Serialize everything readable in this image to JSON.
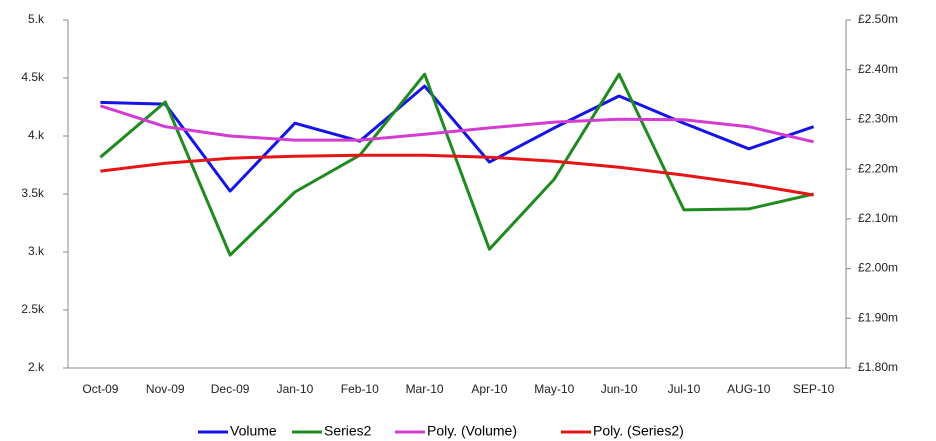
{
  "chart_data": {
    "type": "line",
    "categories": [
      "Oct-09",
      "Nov-09",
      "Dec-09",
      "Jan-10",
      "Feb-10",
      "Mar-10",
      "Apr-10",
      "May-10",
      "Jun-10",
      "Jul-10",
      "AUG-10",
      "SEP-10"
    ],
    "ylim": [
      2000,
      5000
    ],
    "yticks": [
      {
        "value": 2000,
        "label": "2.k"
      },
      {
        "value": 2500,
        "label": "2.5k"
      },
      {
        "value": 3000,
        "label": "3.k"
      },
      {
        "value": 3500,
        "label": "3.5k"
      },
      {
        "value": 4000,
        "label": "4.k"
      },
      {
        "value": 4500,
        "label": "4.5k"
      },
      {
        "value": 5000,
        "label": "5.k"
      }
    ],
    "y2lim": [
      1.8,
      2.5
    ],
    "y2ticks": [
      {
        "value": 1.8,
        "label": "£1.80m"
      },
      {
        "value": 1.9,
        "label": "£1.90m"
      },
      {
        "value": 2.0,
        "label": "£2.00m"
      },
      {
        "value": 2.1,
        "label": "£2.10m"
      },
      {
        "value": 2.2,
        "label": "£2.20m"
      },
      {
        "value": 2.3,
        "label": "£2.30m"
      },
      {
        "value": 2.4,
        "label": "£2.40m"
      },
      {
        "value": 2.5,
        "label": "£2.50m"
      }
    ],
    "series": [
      {
        "name": "Volume",
        "color": "#1414e6",
        "values": [
          4290,
          4275,
          3525,
          4110,
          3955,
          4430,
          3775,
          4070,
          4345,
          4110,
          3890,
          4080
        ]
      },
      {
        "name": "Series2",
        "color": "#1f8a1f",
        "axis": "y2",
        "values": [
          2.224,
          2.335,
          2.027,
          2.154,
          2.228,
          2.391,
          2.039,
          2.18,
          2.391,
          2.118,
          2.12,
          2.15
        ]
      },
      {
        "name": "Poly. (Volume)",
        "color": "#d23cd2",
        "values": [
          4260,
          4080,
          4000,
          3965,
          3965,
          4015,
          4070,
          4120,
          4145,
          4140,
          4080,
          3950
        ]
      },
      {
        "name": "Poly. (Series2)",
        "color": "#e61414",
        "axis": "y2",
        "values": [
          2.196,
          2.212,
          2.222,
          2.226,
          2.228,
          2.228,
          2.224,
          2.216,
          2.204,
          2.188,
          2.17,
          2.148
        ]
      }
    ]
  }
}
